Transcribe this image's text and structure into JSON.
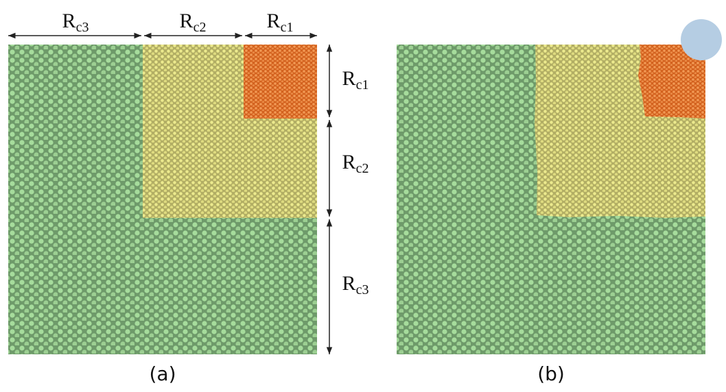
{
  "panel_a": {
    "label": "(a)",
    "top_labels": [
      {
        "main": "R",
        "sub": "c3"
      },
      {
        "main": "R",
        "sub": "c2"
      },
      {
        "main": "R",
        "sub": "c1"
      }
    ],
    "side_labels": [
      {
        "main": "R",
        "sub": "c1"
      },
      {
        "main": "R",
        "sub": "c2"
      },
      {
        "main": "R",
        "sub": "c3"
      }
    ]
  },
  "panel_b": {
    "label": "(b)"
  }
}
